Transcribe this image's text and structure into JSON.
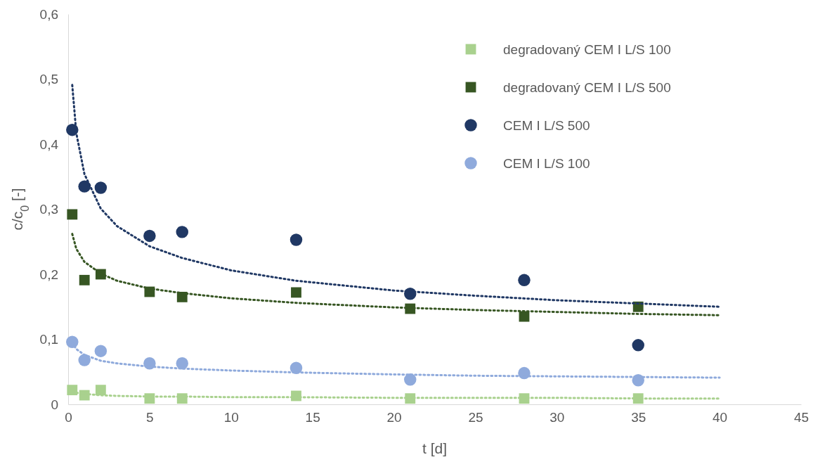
{
  "chart_data": {
    "type": "scatter",
    "xlabel": "t [d]",
    "ylabel": "c/c$_{0}$ [-]",
    "xlim": [
      0,
      45
    ],
    "xticks": [
      0,
      5,
      10,
      15,
      20,
      25,
      30,
      35,
      40,
      45
    ],
    "ylim": [
      0,
      0.6
    ],
    "yticks": [
      0,
      {
        "value": 0.1,
        "label": "0,1"
      },
      {
        "value": 0.2,
        "label": "0,2"
      },
      {
        "value": 0.3,
        "label": "0,3"
      },
      {
        "value": 0.4,
        "label": "0,4"
      },
      {
        "value": 0.5,
        "label": "0,5"
      },
      {
        "value": 0.6,
        "label": "0,6"
      }
    ],
    "grid": false,
    "legend": "top right",
    "x": [
      0.25,
      1,
      2,
      5,
      7,
      14,
      21,
      28,
      35
    ],
    "series": [
      {
        "name": "degradovaný CEM I L/S 100",
        "color": "#a9d18e",
        "marker": "square",
        "values": [
          0.022,
          0.014,
          0.022,
          0.009,
          0.009,
          0.013,
          0.009,
          0.009,
          0.009
        ]
      },
      {
        "name": "degradovaný CEM I L/S 500",
        "color": "#375623",
        "marker": "square",
        "values": [
          0.292,
          0.191,
          0.2,
          0.173,
          0.165,
          0.172,
          0.147,
          0.135,
          0.15
        ]
      },
      {
        "name": "CEM I L/S 500",
        "color": "#203864",
        "marker": "circle",
        "values": [
          0.422,
          0.335,
          0.333,
          0.259,
          0.265,
          0.253,
          0.17,
          0.191,
          0.091
        ]
      },
      {
        "name": "CEM I L/S 100",
        "color": "#8faadc",
        "marker": "circle",
        "values": [
          0.096,
          0.068,
          0.082,
          0.063,
          0.063,
          0.056,
          0.038,
          0.048,
          0.037
        ]
      },
      {
        "type": "line",
        "color": "#a9d18e",
        "marker": "none",
        "line_style": "dotted",
        "x": [
          0.25,
          0.5,
          1,
          2,
          3,
          5,
          7,
          10,
          14,
          20,
          25,
          30,
          35,
          40
        ],
        "values": [
          0.02,
          0.018,
          0.016,
          0.014,
          0.013,
          0.012,
          0.012,
          0.011,
          0.011,
          0.01,
          0.01,
          0.01,
          0.009,
          0.009
        ]
      },
      {
        "type": "line",
        "color": "#375623",
        "marker": "none",
        "line_style": "dotted",
        "x": [
          0.25,
          0.5,
          1,
          2,
          3,
          5,
          7,
          10,
          14,
          20,
          25,
          30,
          35,
          40
        ],
        "values": [
          0.262,
          0.239,
          0.219,
          0.201,
          0.19,
          0.178,
          0.171,
          0.163,
          0.156,
          0.149,
          0.145,
          0.142,
          0.139,
          0.137
        ]
      },
      {
        "type": "line",
        "color": "#203864",
        "marker": "none",
        "line_style": "dotted",
        "x": [
          0.25,
          0.5,
          1,
          2,
          3,
          5,
          7,
          10,
          14,
          20,
          25,
          30,
          35,
          40
        ],
        "values": [
          0.491,
          0.417,
          0.354,
          0.301,
          0.274,
          0.243,
          0.225,
          0.206,
          0.19,
          0.175,
          0.167,
          0.16,
          0.155,
          0.15
        ]
      },
      {
        "type": "line",
        "color": "#8faadc",
        "marker": "none",
        "line_style": "dotted",
        "x": [
          0.25,
          0.5,
          1,
          2,
          3,
          5,
          7,
          10,
          14,
          20,
          25,
          30,
          35,
          40
        ],
        "values": [
          0.095,
          0.085,
          0.076,
          0.067,
          0.063,
          0.058,
          0.055,
          0.052,
          0.049,
          0.046,
          0.044,
          0.043,
          0.042,
          0.041
        ]
      }
    ]
  }
}
